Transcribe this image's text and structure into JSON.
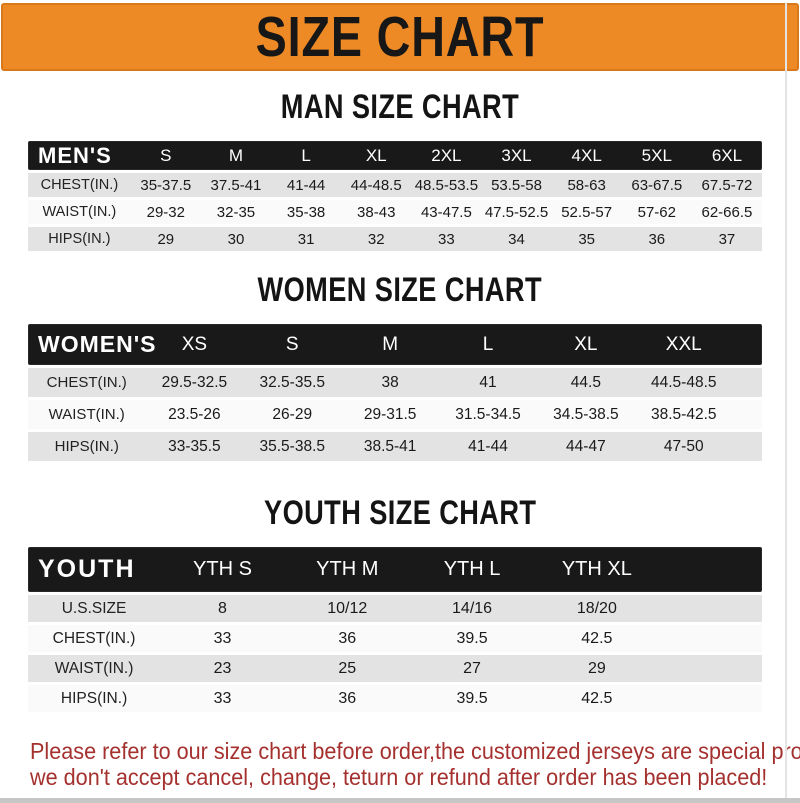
{
  "banner": {
    "title": "SIZE CHART"
  },
  "sections": [
    {
      "heading": "MAN SIZE CHART",
      "header": [
        "MEN'S",
        "S",
        "M",
        "L",
        "XL",
        "2XL",
        "3XL",
        "4XL",
        "5XL",
        "6XL"
      ],
      "rows": [
        [
          "CHEST(IN.)",
          "35-37.5",
          "37.5-41",
          "41-44",
          "44-48.5",
          "48.5-53.5",
          "53.5-58",
          "58-63",
          "63-67.5",
          "67.5-72"
        ],
        [
          "WAIST(IN.)",
          "29-32",
          "32-35",
          "35-38",
          "38-43",
          "43-47.5",
          "47.5-52.5",
          "52.5-57",
          "57-62",
          "62-66.5"
        ],
        [
          "HIPS(IN.)",
          "29",
          "30",
          "31",
          "32",
          "33",
          "34",
          "35",
          "36",
          "37"
        ]
      ]
    },
    {
      "heading": "WOMEN SIZE CHART",
      "header": [
        "WOMEN'S",
        "XS",
        "S",
        "M",
        "L",
        "XL",
        "XXL"
      ],
      "rows": [
        [
          "CHEST(IN.)",
          "29.5-32.5",
          "32.5-35.5",
          "38",
          "41",
          "44.5",
          "44.5-48.5"
        ],
        [
          "WAIST(IN.)",
          "23.5-26",
          "26-29",
          "29-31.5",
          "31.5-34.5",
          "34.5-38.5",
          "38.5-42.5"
        ],
        [
          "HIPS(IN.)",
          "33-35.5",
          "35.5-38.5",
          "38.5-41",
          "41-44",
          "44-47",
          "47-50"
        ]
      ]
    },
    {
      "heading": "YOUTH SIZE CHART",
      "header": [
        "YOUTH",
        "YTH S",
        "YTH M",
        "YTH L",
        "YTH XL"
      ],
      "rows": [
        [
          "U.S.SIZE",
          "8",
          "10/12",
          "14/16",
          "18/20"
        ],
        [
          "CHEST(IN.)",
          "33",
          "36",
          "39.5",
          "42.5"
        ],
        [
          "WAIST(IN.)",
          "23",
          "25",
          "27",
          "29"
        ],
        [
          "HIPS(IN.)",
          "33",
          "36",
          "39.5",
          "42.5"
        ]
      ]
    }
  ],
  "footer": {
    "line1": "Please refer to our size chart before order,the customized jerseys are special products,",
    "line2": "we don't accept cancel, change, teturn or refund after order has been placed!"
  },
  "colors": {
    "banner_bg": "#ee8a25",
    "banner_border": "#d9781a",
    "table_header_bg": "#191919",
    "row_shade": "#e3e3e3",
    "footer_text": "#a5312f"
  }
}
